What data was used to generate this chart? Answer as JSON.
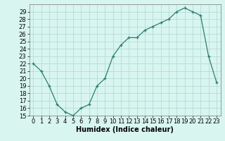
{
  "x": [
    0,
    1,
    2,
    3,
    4,
    5,
    6,
    7,
    8,
    9,
    10,
    11,
    12,
    13,
    14,
    15,
    16,
    17,
    18,
    19,
    20,
    21,
    22,
    23
  ],
  "y": [
    22,
    21,
    19,
    16.5,
    15.5,
    15,
    16,
    16.5,
    19,
    20,
    23,
    24.5,
    25.5,
    25.5,
    26.5,
    27,
    27.5,
    28,
    29,
    29.5,
    29,
    28.5,
    23,
    19.5
  ],
  "line_color": "#2e7d6e",
  "marker": "+",
  "marker_size": 3,
  "bg_color": "#d8f5f0",
  "grid_color": "#aed8d0",
  "xlabel": "Humidex (Indice chaleur)",
  "xlabel_fontsize": 7,
  "tick_fontsize": 6,
  "ylim": [
    15,
    30
  ],
  "yticks": [
    15,
    16,
    17,
    18,
    19,
    20,
    21,
    22,
    23,
    24,
    25,
    26,
    27,
    28,
    29
  ],
  "xlim": [
    -0.5,
    23.5
  ],
  "xticks": [
    0,
    1,
    2,
    3,
    4,
    5,
    6,
    7,
    8,
    9,
    10,
    11,
    12,
    13,
    14,
    15,
    16,
    17,
    18,
    19,
    20,
    21,
    22,
    23
  ]
}
